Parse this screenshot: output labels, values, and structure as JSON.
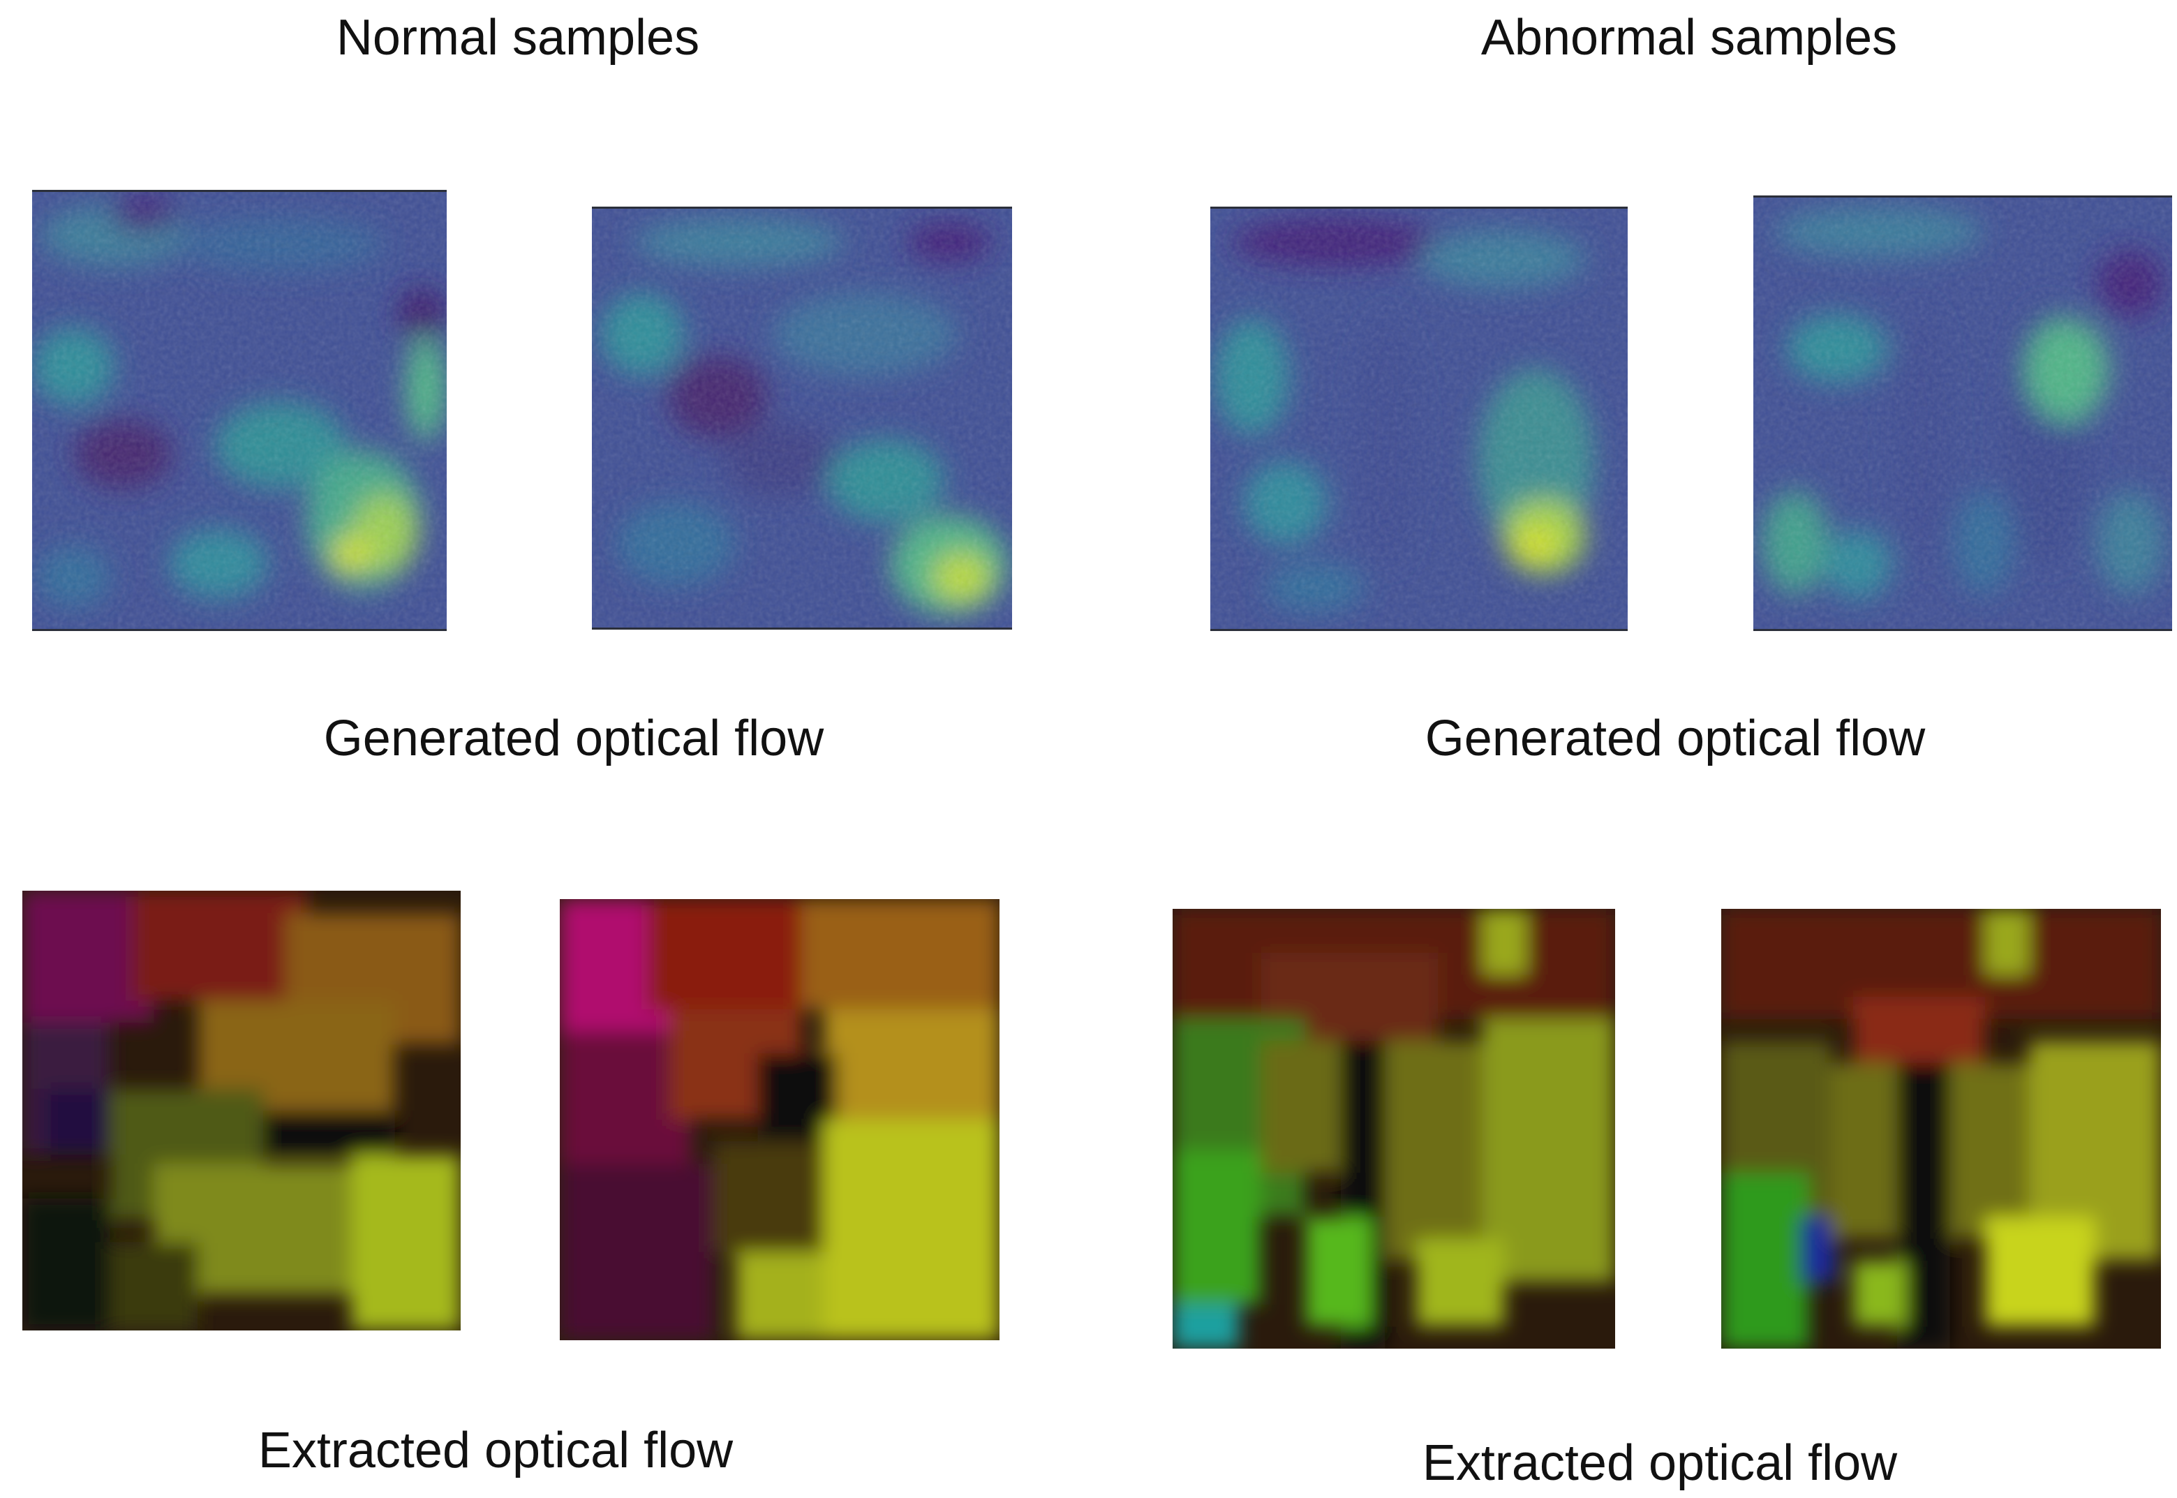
{
  "headings": {
    "normal": "Normal samples",
    "abnormal": "Abnormal samples"
  },
  "captions": {
    "normal_generated": "Generated optical flow",
    "abnormal_generated": "Generated optical flow",
    "normal_extracted": "Extracted optical flow",
    "abnormal_extracted": "Extracted optical flow"
  },
  "colors": {
    "viridis_dark": "#3b2a7a",
    "viridis_mid": "#3d5c9c",
    "viridis_teal": "#2fa38a",
    "viridis_yellow": "#d9e021",
    "flow_magenta": "#b0106e",
    "flow_red": "#8a1a10",
    "flow_orange": "#a7681a",
    "flow_olive": "#8c8a1c",
    "flow_green": "#3aa21c",
    "flow_lime": "#c8e01a",
    "flow_black": "#0d0b07",
    "flow_blue": "#1b2a9a"
  }
}
